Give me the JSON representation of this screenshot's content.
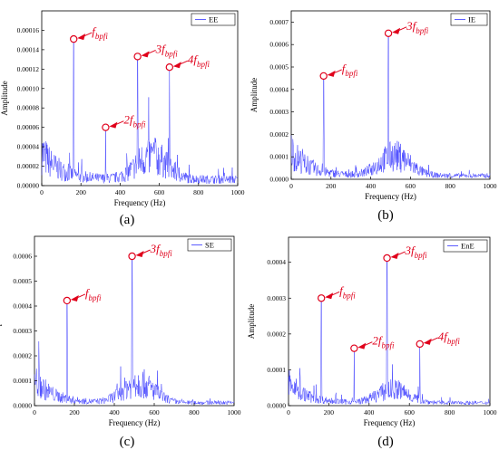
{
  "chart_data": [
    {
      "type": "line",
      "caption": "(a)",
      "legend": "EE",
      "legend_position": "top-right",
      "xlabel": "Frequency (Hz)",
      "ylabel": "Amplitude",
      "xlim": [
        0,
        1000
      ],
      "ylim": [
        0,
        0.00018
      ],
      "xticks": [
        0,
        200,
        400,
        600,
        800,
        1000
      ],
      "yticks": [
        "0.00000",
        "0.00002",
        "0.00004",
        "0.00006",
        "0.00008",
        "0.00010",
        "0.00012",
        "0.00014",
        "0.00016"
      ],
      "ytick_values": [
        0,
        2e-05,
        4e-05,
        6e-05,
        8e-05,
        0.0001,
        0.00012,
        0.00014,
        0.00016
      ],
      "peaks": [
        {
          "x": 163,
          "y": 0.000151,
          "label": "f",
          "sub": "bpfi"
        },
        {
          "x": 326,
          "y": 6e-05,
          "label": "2f",
          "sub": "bpfi"
        },
        {
          "x": 489,
          "y": 0.000133,
          "label": "3f",
          "sub": "bpfi"
        },
        {
          "x": 652,
          "y": 0.000122,
          "label": "4f",
          "sub": "bpfi"
        }
      ],
      "noise": {
        "low_band": 3.5e-05,
        "mid_band": 3e-05,
        "mid_center": 560,
        "floor": 8e-06
      }
    },
    {
      "type": "line",
      "caption": "(b)",
      "legend": "IE",
      "legend_position": "top-right",
      "xlabel": "Frequency (Hz)",
      "ylabel": "Amplitude",
      "xlim": [
        0,
        1000
      ],
      "ylim": [
        0,
        0.00075
      ],
      "xticks": [
        0,
        200,
        400,
        600,
        800,
        1000
      ],
      "yticks": [
        "0.0000",
        "0.0001",
        "0.0002",
        "0.0003",
        "0.0004",
        "0.0005",
        "0.0006",
        "0.0007"
      ],
      "ytick_values": [
        0,
        0.0001,
        0.0002,
        0.0003,
        0.0004,
        0.0005,
        0.0006,
        0.0007
      ],
      "peaks": [
        {
          "x": 163,
          "y": 0.00046,
          "label": "f",
          "sub": "bpfi"
        },
        {
          "x": 489,
          "y": 0.00065,
          "label": "3f",
          "sub": "bpfi"
        }
      ],
      "noise": {
        "low_band": 0.00014,
        "mid_band": 0.00011,
        "mid_center": 520,
        "floor": 2e-05
      }
    },
    {
      "type": "line",
      "caption": "(c)",
      "legend": "SE",
      "legend_position": "top-right",
      "xlabel": "Frequency (Hz)",
      "ylabel": "Amplitude",
      "xlim": [
        0,
        1000
      ],
      "ylim": [
        0,
        0.00068
      ],
      "xticks": [
        0,
        200,
        400,
        600,
        800,
        1000
      ],
      "yticks": [
        "0.0000",
        "0.0001",
        "0.0002",
        "0.0003",
        "0.0004",
        "0.0005",
        "0.0006"
      ],
      "ytick_values": [
        0,
        0.0001,
        0.0002,
        0.0003,
        0.0004,
        0.0005,
        0.0006
      ],
      "peaks": [
        {
          "x": 163,
          "y": 0.000422,
          "label": "f",
          "sub": "bpfi"
        },
        {
          "x": 489,
          "y": 0.0006,
          "label": "3f",
          "sub": "bpfi"
        }
      ],
      "noise": {
        "low_band": 0.00012,
        "mid_band": 0.0001,
        "mid_center": 520,
        "floor": 1.5e-05
      }
    },
    {
      "type": "line",
      "caption": "(d)",
      "legend": "EnE",
      "legend_position": "top-right",
      "xlabel": "Frequency (Hz)",
      "ylabel": "Amplitude",
      "xlim": [
        0,
        1000
      ],
      "ylim": [
        0,
        0.00047
      ],
      "xticks": [
        0,
        200,
        400,
        600,
        800,
        1000
      ],
      "yticks": [
        "0.0000",
        "0.0001",
        "0.0002",
        "0.0003",
        "0.0004"
      ],
      "ytick_values": [
        0,
        0.0001,
        0.0002,
        0.0003,
        0.0004
      ],
      "peaks": [
        {
          "x": 163,
          "y": 0.0003,
          "label": "f",
          "sub": "bpfi"
        },
        {
          "x": 326,
          "y": 0.00016,
          "label": "2f",
          "sub": "bpfi"
        },
        {
          "x": 489,
          "y": 0.000412,
          "label": "3f",
          "sub": "bpfi"
        },
        {
          "x": 652,
          "y": 0.000172,
          "label": "4f",
          "sub": "bpfi"
        }
      ],
      "noise": {
        "low_band": 7e-05,
        "mid_band": 4.5e-05,
        "mid_center": 520,
        "floor": 1e-05
      }
    }
  ],
  "colors": {
    "series": "#3333ff",
    "annotation": "#e0001b",
    "axis": "#000000"
  }
}
